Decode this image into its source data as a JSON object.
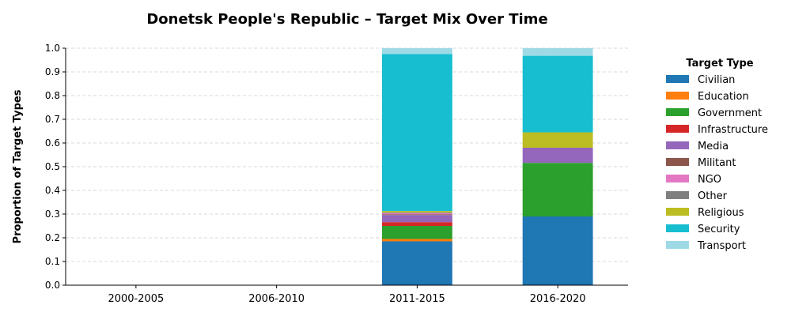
{
  "chart_data": {
    "type": "bar",
    "stacked": true,
    "title": "Donetsk People's Republic – Target Mix Over Time",
    "xlabel": "",
    "ylabel": "Proportion of Target Types",
    "ylim": [
      0,
      1.0
    ],
    "yticks": [
      "0.0",
      "0.1",
      "0.2",
      "0.3",
      "0.4",
      "0.5",
      "0.6",
      "0.7",
      "0.8",
      "0.9",
      "1.0"
    ],
    "grid": "horizontal dashed",
    "legend_title": "Target Type",
    "legend_position": "right",
    "categories": [
      "2000-2005",
      "2006-2010",
      "2011-2015",
      "2016-2020"
    ],
    "series": [
      {
        "name": "Civilian",
        "color": "#1f77b4",
        "values": [
          0,
          0,
          0.185,
          0.29
        ]
      },
      {
        "name": "Education",
        "color": "#ff7f0e",
        "values": [
          0,
          0,
          0.01,
          0
        ]
      },
      {
        "name": "Government",
        "color": "#2ca02c",
        "values": [
          0,
          0,
          0.055,
          0.226
        ]
      },
      {
        "name": "Infrastructure",
        "color": "#d62728",
        "values": [
          0,
          0,
          0.016,
          0
        ]
      },
      {
        "name": "Media",
        "color": "#9467bd",
        "values": [
          0,
          0,
          0.03,
          0.064
        ]
      },
      {
        "name": "Militant",
        "color": "#8c564b",
        "values": [
          0,
          0,
          0.003,
          0
        ]
      },
      {
        "name": "NGO",
        "color": "#e377c2",
        "values": [
          0,
          0,
          0.005,
          0
        ]
      },
      {
        "name": "Other",
        "color": "#7f7f7f",
        "values": [
          0,
          0,
          0.003,
          0
        ]
      },
      {
        "name": "Religious",
        "color": "#bcbd22",
        "values": [
          0,
          0,
          0.006,
          0.065
        ]
      },
      {
        "name": "Security",
        "color": "#17becf",
        "values": [
          0,
          0,
          0.662,
          0.323
        ]
      },
      {
        "name": "Transport",
        "color": "#9edae5",
        "values": [
          0,
          0,
          0.025,
          0.032
        ]
      }
    ]
  }
}
